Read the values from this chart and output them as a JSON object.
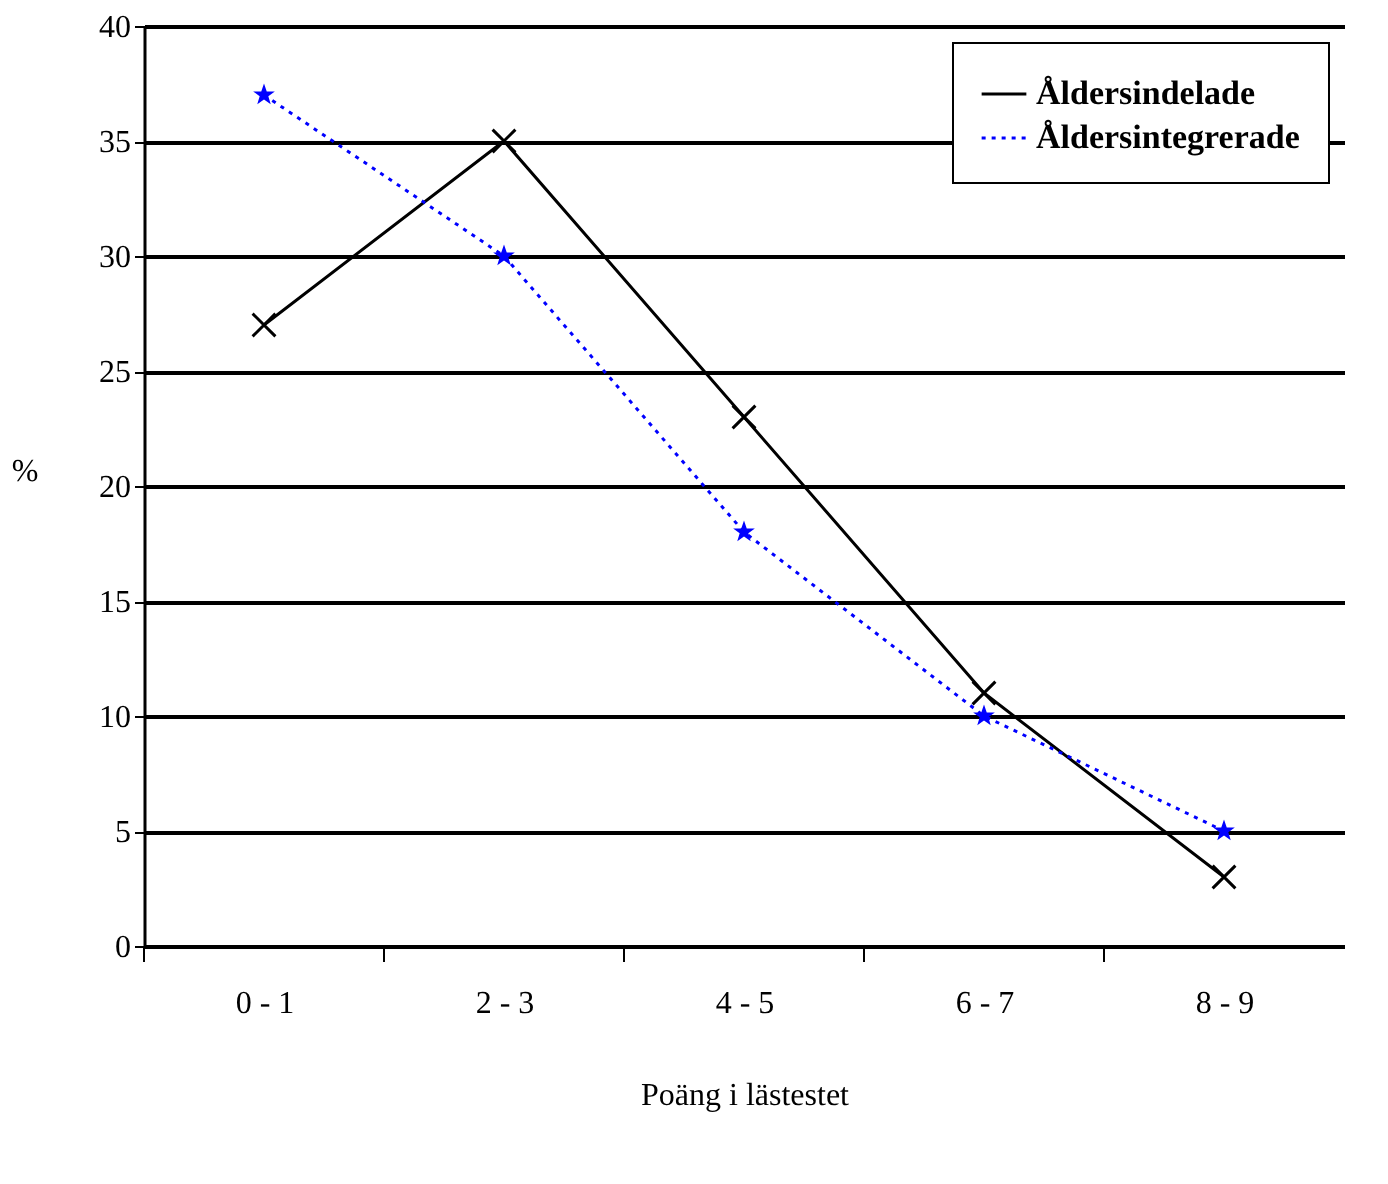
{
  "chart_data": {
    "type": "line",
    "xlabel": "Poäng i lästestet",
    "ylabel": "%",
    "categories": [
      "0 - 1",
      "2 - 3",
      "4 - 5",
      "6 - 7",
      "8 - 9"
    ],
    "series": [
      {
        "name": "Åldersindelade",
        "color": "#000000",
        "values": [
          27,
          35,
          23,
          11,
          3
        ],
        "marker": "cross",
        "line_style": "solid"
      },
      {
        "name": "Åldersintegrerade",
        "color": "#0000ff",
        "values": [
          37,
          30,
          18,
          10,
          5
        ],
        "marker": "star",
        "line_style": "dotted"
      }
    ],
    "ylim": [
      0,
      40
    ],
    "yticks": [
      0,
      5,
      10,
      15,
      20,
      25,
      30,
      35,
      40
    ],
    "grid": "y",
    "legend": "top right"
  }
}
